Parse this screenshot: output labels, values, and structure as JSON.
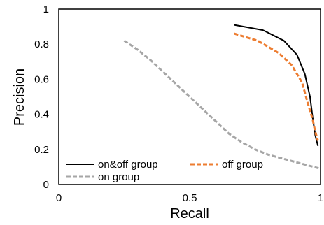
{
  "chart_data": {
    "type": "line",
    "title": "",
    "xlabel": "Recall",
    "ylabel": "Precision",
    "xlim": [
      0,
      1
    ],
    "ylim": [
      0,
      1
    ],
    "xticks": [
      0,
      0.5,
      1
    ],
    "xtick_labels": [
      "0",
      "0.5",
      "1"
    ],
    "yticks": [
      0,
      0.2,
      0.4,
      0.6,
      0.8,
      1
    ],
    "ytick_labels": [
      "0",
      "0.2",
      "0.4",
      "0.6",
      "0.8",
      "1"
    ],
    "grid": false,
    "legend_position": "bottom-left",
    "series": [
      {
        "name": "on&off group",
        "color": "#000000",
        "style": "solid",
        "x": [
          0.67,
          0.78,
          0.86,
          0.91,
          0.94,
          0.96,
          0.97,
          0.98,
          0.99
        ],
        "y": [
          0.91,
          0.88,
          0.82,
          0.74,
          0.63,
          0.5,
          0.38,
          0.28,
          0.22
        ]
      },
      {
        "name": "off group",
        "color": "#ed7d31",
        "style": "dashed",
        "x": [
          0.67,
          0.76,
          0.84,
          0.89,
          0.93,
          0.95,
          0.97,
          0.98,
          0.99
        ],
        "y": [
          0.86,
          0.82,
          0.75,
          0.68,
          0.58,
          0.47,
          0.37,
          0.3,
          0.25
        ]
      },
      {
        "name": "on group",
        "color": "#a6a6a6",
        "style": "dashed",
        "x": [
          0.25,
          0.3,
          0.35,
          0.4,
          0.45,
          0.5,
          0.55,
          0.6,
          0.65,
          0.7,
          0.75,
          0.8,
          0.85,
          0.9,
          0.95,
          1.0
        ],
        "y": [
          0.82,
          0.77,
          0.71,
          0.64,
          0.57,
          0.5,
          0.43,
          0.36,
          0.29,
          0.24,
          0.2,
          0.17,
          0.15,
          0.13,
          0.11,
          0.09
        ]
      }
    ]
  }
}
